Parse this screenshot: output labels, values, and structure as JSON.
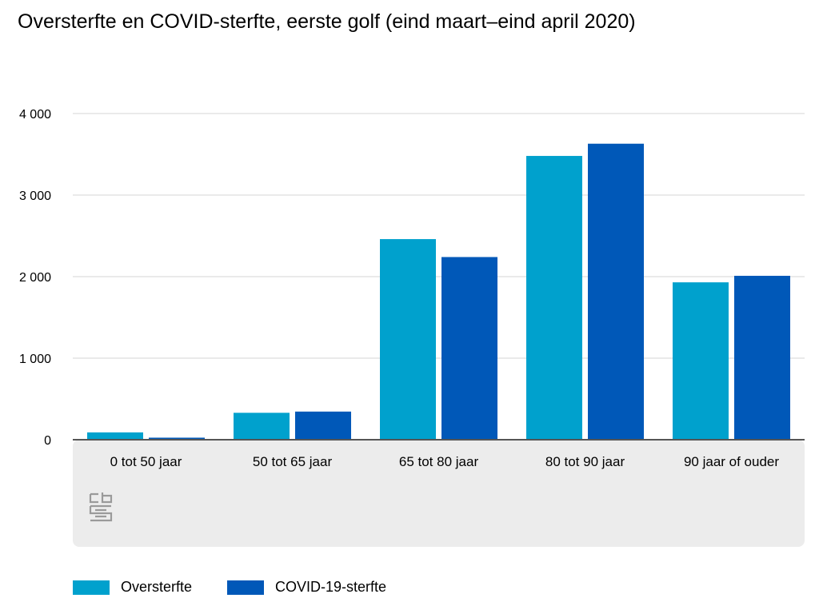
{
  "chart_data": {
    "type": "bar",
    "title": "Oversterfte en COVID-sterfte, eerste golf (eind maart–eind april 2020)",
    "categories": [
      "0 tot 50 jaar",
      "50 tot 65 jaar",
      "65 tot 80 jaar",
      "80 tot 90 jaar",
      "90 jaar of ouder"
    ],
    "series": [
      {
        "name": "Oversterfte",
        "color": "#00a1cd",
        "values": [
          90,
          330,
          2460,
          3480,
          1930
        ]
      },
      {
        "name": "COVID-19-sterfte",
        "color": "#0058b8",
        "values": [
          25,
          345,
          2240,
          3630,
          2010
        ]
      }
    ],
    "yticks": [
      0,
      1000,
      2000,
      3000,
      4000
    ],
    "ytick_labels": [
      "0",
      "1 000",
      "2 000",
      "3 000",
      "4 000"
    ],
    "ylim": [
      0,
      4000
    ],
    "grid": true,
    "legend_position": "bottom-left",
    "logo": "cbs-logo-icon"
  }
}
